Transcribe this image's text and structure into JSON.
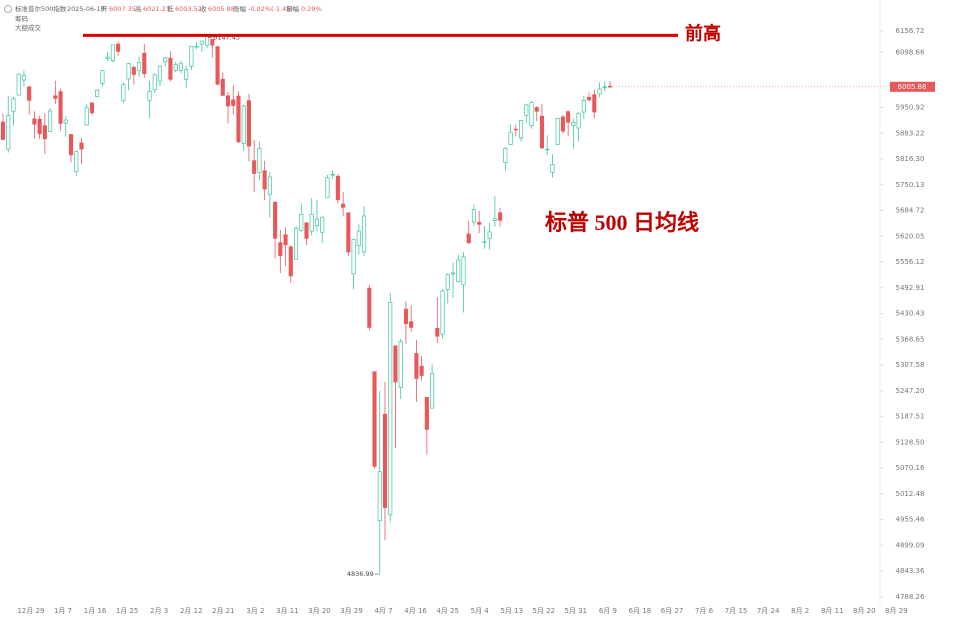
{
  "header": {
    "title": "标准普尔500指数",
    "date": "2025-06-10",
    "open_label": "开",
    "open": "6007.35",
    "high_label": "高",
    "high": "6021.23",
    "low_label": "低",
    "low": "6003.52",
    "close_label": "收",
    "close": "6005.88",
    "change_label": "涨幅",
    "change": "-0.02%(-1.45)",
    "amplitude_label": "振幅",
    "amplitude": "0.29%",
    "indicator_1": "筹码",
    "indicator_2": "大额成交"
  },
  "chart_data": {
    "type": "candlestick",
    "open": [
      5913,
      5842,
      5941,
      5984,
      6024,
      6006,
      5921,
      5920,
      5903,
      5888,
      5982,
      5993,
      5910,
      5880,
      5784,
      5858,
      5905,
      5963,
      5980,
      6015,
      6082,
      6076,
      6121,
      5970,
      6027,
      6058,
      6050,
      6096,
      5970,
      5998,
      6021,
      6073,
      6083,
      6050,
      6050,
      6026,
      6061,
      6115,
      6121,
      6118,
      6134,
      6114,
      6026,
      5982,
      5971,
      5981,
      5857,
      5969,
      5812,
      5782,
      5786,
      5726,
      5706,
      5604,
      5624,
      5594,
      5563,
      5635,
      5654,
      5633,
      5647,
      5630,
      5718,
      5775,
      5772,
      5701,
      5679,
      5527,
      5597,
      5581,
      5492,
      5292,
      4953,
      5193,
      4966,
      5353,
      5255,
      5441,
      5411,
      5335,
      5305,
      5232,
      5207,
      5395,
      5381,
      5489,
      5529,
      5508,
      5500,
      5626,
      5656,
      5655,
      5607,
      5614,
      5660,
      5679,
      5807,
      5854,
      5894,
      5871,
      5930,
      5903,
      5951,
      5928,
      5841,
      5782,
      5854,
      5926,
      5940,
      5903,
      5897,
      5939,
      5978,
      5985,
      5987,
      6004,
      6007.35
    ],
    "high": [
      5935,
      5982,
      5979,
      6040,
      6049,
      6006,
      5941,
      5929,
      5935,
      5950,
      6022,
      6001,
      5928,
      5881,
      5837,
      5872,
      5961,
      5965,
      6000,
      6051,
      6100,
      6119,
      6128,
      6018,
      6070,
      6063,
      6087,
      6121,
      6022,
      6042,
      6062,
      6085,
      6101,
      6073,
      6076,
      6063,
      6116,
      6127,
      6129,
      6147.43,
      6134,
      6115,
      6044,
      5992,
      6010,
      5994,
      5959,
      5987,
      5866,
      5861,
      5812,
      5783,
      5706,
      5636,
      5642,
      5597,
      5645,
      5703,
      5654,
      5716,
      5711,
      5670,
      5775,
      5787,
      5777,
      5732,
      5679,
      5613,
      5651,
      5695,
      5500,
      5292,
      5247,
      5268,
      5481,
      5353,
      5370,
      5460,
      5450,
      5367,
      5329,
      5232,
      5309,
      5470,
      5490,
      5528,
      5554,
      5574,
      5581,
      5659,
      5700,
      5684,
      5646,
      5654,
      5721,
      5692,
      5847,
      5907,
      5906,
      5917,
      5959,
      5968,
      5954,
      5960,
      5878,
      5829,
      5924,
      5931,
      5943,
      5922,
      5938,
      5982,
      5991,
      5999,
      6017,
      6021,
      6021.23
    ],
    "low": [
      5866,
      5833,
      5903,
      5983,
      6007,
      5932,
      5869,
      5868,
      5829,
      5888,
      5960,
      5890,
      5874,
      5808,
      5773,
      5803,
      5904,
      5930,
      5978,
      6006,
      6075,
      6071,
      6089,
      5962,
      5997,
      6012,
      6032,
      6030,
      5923,
      5990,
      6007,
      6060,
      6020,
      6045,
      6042,
      6003,
      6051,
      6107,
      6100,
      6111,
      6084,
      6009,
      5982,
      5909,
      5932,
      5858,
      5837,
      5810,
      5732,
      5762,
      5711,
      5667,
      5565,
      5529,
      5546,
      5505,
      5563,
      5631,
      5598,
      5622,
      5632,
      5603,
      5718,
      5765,
      5703,
      5670,
      5572,
      5489,
      5574,
      5571,
      5390,
      5069,
      4836.99,
      4910,
      4950,
      5115,
      5228,
      5358,
      5387,
      5221,
      5271,
      5101,
      5207,
      5360,
      5371,
      5455,
      5468,
      5506,
      5433,
      5600,
      5646,
      5628,
      5589,
      5587,
      5644,
      5645,
      5786,
      5854,
      5875,
      5862,
      5910,
      5895,
      5915,
      5842,
      5826,
      5768,
      5854,
      5882,
      5875,
      5843,
      5862,
      5920,
      5966,
      5922,
      5978,
      5994,
      6003.52
    ],
    "close": [
      5867,
      5930,
      5974,
      6040,
      6037,
      5970,
      5907,
      5882,
      5869,
      5942,
      5975,
      5909,
      5918,
      5827,
      5836,
      5842,
      5950,
      5937,
      5997,
      6049,
      6086,
      6119,
      6101,
      6012,
      6068,
      6039,
      6071,
      6041,
      5994,
      6038,
      6061,
      6084,
      6026,
      6066,
      6069,
      6052,
      6115,
      6115,
      6129,
      6144,
      6118,
      6013,
      5983,
      5955,
      5956,
      5861,
      5955,
      5850,
      5779,
      5843,
      5739,
      5770,
      5615,
      5572,
      5599,
      5522,
      5639,
      5675,
      5615,
      5675,
      5663,
      5668,
      5768,
      5777,
      5712,
      5693,
      5581,
      5612,
      5633,
      5671,
      5397,
      5074,
      5062,
      4982,
      5457,
      5268,
      5363,
      5406,
      5397,
      5276,
      5283,
      5158,
      5288,
      5376,
      5485,
      5525,
      5529,
      5561,
      5569,
      5604,
      5687,
      5650,
      5607,
      5631,
      5664,
      5660,
      5844,
      5886,
      5892,
      5917,
      5958,
      5964,
      5941,
      5845,
      5842,
      5802,
      5922,
      5889,
      5912,
      5912,
      5936,
      5970,
      5971,
      5939,
      6000,
      6006,
      6005.88
    ],
    "x_labels": [
      "12月 29",
      "1月 7",
      "1月 16",
      "1月 25",
      "2月 3",
      "2月 12",
      "2月 21",
      "3月 2",
      "3月 11",
      "3月 20",
      "3月 29",
      "4月 7",
      "4月 16",
      "4月 25",
      "5月 4",
      "5月 13",
      "5月 22",
      "5月 31",
      "6月 9",
      "6月 18",
      "6月 27",
      "7月 6",
      "7月 15",
      "7月 24",
      "8月 2",
      "8月 11",
      "8月 20",
      "8月 29"
    ],
    "ylim": [
      4771,
      6242
    ],
    "log_scale": true,
    "yticks": [
      6156.72,
      6098.66,
      5950.92,
      5883.22,
      {
        "value": 5816.3,
        "label": "5816.30"
      },
      5750.13,
      5684.72,
      5620.05,
      5556.12,
      5492.91,
      5430.43,
      5368.65,
      5307.58,
      {
        "value": 5247.2,
        "label": "5247.20"
      },
      5187.51,
      {
        "value": 5128.5,
        "label": "5128.50"
      },
      5070.16,
      5012.48,
      4955.46,
      4899.09,
      4843.36,
      4788.26
    ],
    "up_color": "#3cc79c",
    "down_color": "#e8585b",
    "peak_label": "6147.43",
    "low_label": "4836.99",
    "last_price_label": "6005.88",
    "prior_high_label": "前高",
    "annotation": "标普 500 日均线",
    "annotation_color": "#c00000"
  }
}
